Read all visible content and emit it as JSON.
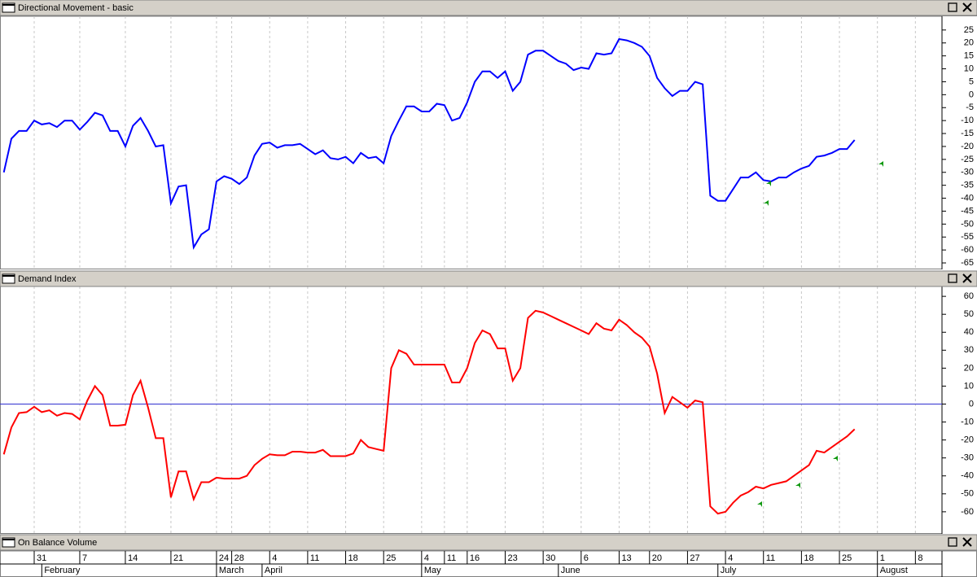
{
  "chart_data": [
    {
      "type": "line",
      "title": "Directional Movement - basic",
      "color": "#0000ff",
      "values": [
        -30,
        -17,
        -14,
        -14,
        -10,
        -11.5,
        -11,
        -12.5,
        -10,
        -10,
        -13.5,
        -10.5,
        -7,
        -8,
        -14,
        -14,
        -20,
        -12,
        -9,
        -14,
        -20,
        -19.5,
        -42,
        -35.5,
        -35,
        -59,
        -54,
        -52,
        -33.5,
        -31.5,
        -32.5,
        -34.5,
        -32,
        -23.5,
        -19,
        -18.5,
        -20.5,
        -19.5,
        -19.5,
        -19,
        -21,
        -23,
        -21.5,
        -24.5,
        -25,
        -24,
        -26.5,
        -22.5,
        -24.5,
        -24,
        -26.5,
        -16,
        -10,
        -4.5,
        -4.5,
        -6.5,
        -6.5,
        -3.5,
        -4,
        -10,
        -9,
        -3,
        5,
        9,
        9,
        6.5,
        9,
        1.5,
        5,
        15.5,
        17,
        17,
        15,
        13,
        12,
        9.5,
        10.5,
        10,
        16,
        15.5,
        16,
        21.5,
        21,
        20,
        18.5,
        15,
        6.5,
        2.5,
        -0.5,
        1.5,
        1.5,
        5,
        4,
        -39,
        -41,
        -41,
        -36.5,
        -32,
        -32,
        -30,
        -33,
        -33.5,
        -32,
        -32,
        -30,
        -28.5,
        -27.5,
        -24,
        -23.5,
        -22.5,
        -21,
        -21,
        -17.5
      ],
      "ylim": [
        -67.5,
        30.3
      ],
      "yticks": [
        -65,
        -60,
        -55,
        -50,
        -45,
        -40,
        -35,
        -30,
        -25,
        -20,
        -15,
        -10,
        -5,
        0,
        5,
        10,
        15,
        20,
        25
      ],
      "grid": true
    },
    {
      "type": "line",
      "title": "Demand Index",
      "color": "#ff0000",
      "values": [
        -28,
        -13,
        -5,
        -4.5,
        -1.5,
        -4.5,
        -3.5,
        -6.5,
        -5,
        -5.5,
        -8.5,
        2,
        10,
        5,
        -12,
        -12,
        -11.5,
        5,
        13,
        -2,
        -19,
        -19,
        -52,
        -37.5,
        -37.5,
        -53,
        -43.5,
        -43.5,
        -41,
        -41.5,
        -41.5,
        -41.5,
        -40,
        -34,
        -30.5,
        -28,
        -28.5,
        -28.5,
        -26.5,
        -26.5,
        -27,
        -27,
        -25.5,
        -29,
        -29,
        -29,
        -27.5,
        -20,
        -24,
        -25,
        -26,
        20,
        30,
        28,
        22,
        22,
        22,
        22,
        22,
        12,
        12,
        20,
        34,
        41,
        39,
        31,
        31,
        13,
        20,
        48,
        52,
        51,
        49,
        47,
        45,
        43,
        41,
        39,
        45,
        42,
        41,
        47,
        44,
        40,
        37,
        32,
        17,
        -5,
        4,
        1,
        -2,
        2,
        1,
        -57,
        -61,
        -60,
        -55,
        -51,
        -49,
        -46,
        -47,
        -45,
        -44,
        -43,
        -40,
        -37,
        -34,
        -26,
        -27,
        -24,
        -21,
        -18,
        -14
      ],
      "ylim": [
        -72.3,
        65.5
      ],
      "yticks": [
        -60,
        -50,
        -40,
        -30,
        -20,
        -10,
        0,
        10,
        20,
        30,
        40,
        50,
        60
      ],
      "grid": true,
      "reference_line": 0,
      "reference_color": "#3030d0"
    },
    {
      "type": "line",
      "title": "On Balance Volume",
      "xlim": [
        -0.5,
        123.5
      ],
      "xticks": [
        {
          "value": 4,
          "label": "31"
        },
        {
          "value": 10,
          "label": "7"
        },
        {
          "value": 16,
          "label": "14"
        },
        {
          "value": 22,
          "label": "21"
        },
        {
          "value": 28,
          "label": "24"
        },
        {
          "value": 30,
          "label": "28"
        },
        {
          "value": 35,
          "label": "4"
        },
        {
          "value": 40,
          "label": "11"
        },
        {
          "value": 45,
          "label": "18"
        },
        {
          "value": 50,
          "label": "25"
        },
        {
          "value": 55,
          "label": "4"
        },
        {
          "value": 58,
          "label": "11"
        },
        {
          "value": 61,
          "label": "16"
        },
        {
          "value": 66,
          "label": "23"
        },
        {
          "value": 71,
          "label": "30"
        },
        {
          "value": 76,
          "label": "6"
        },
        {
          "value": 81,
          "label": "13"
        },
        {
          "value": 85,
          "label": "20"
        },
        {
          "value": 90,
          "label": "27"
        },
        {
          "value": 95,
          "label": "4"
        },
        {
          "value": 100,
          "label": "11"
        },
        {
          "value": 105,
          "label": "18"
        },
        {
          "value": 110,
          "label": "25"
        },
        {
          "value": 115,
          "label": "1"
        },
        {
          "value": 120,
          "label": "8"
        }
      ],
      "months": [
        {
          "value": 5,
          "label": "February"
        },
        {
          "value": 28,
          "label": "March"
        },
        {
          "value": 34,
          "label": "April"
        },
        {
          "value": 55,
          "label": "May"
        },
        {
          "value": 73,
          "label": "June"
        },
        {
          "value": 94,
          "label": "July"
        },
        {
          "value": 115,
          "label": "August"
        }
      ]
    }
  ]
}
